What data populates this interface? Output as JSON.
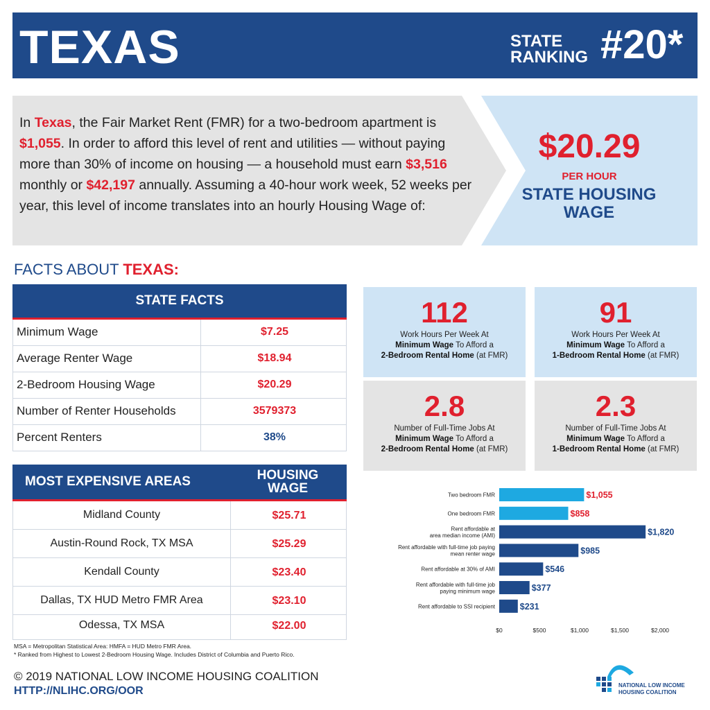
{
  "header": {
    "state": "TEXAS",
    "ranking_label_1": "STATE",
    "ranking_label_2": "RANKING",
    "ranking_value": "#20*"
  },
  "intro": {
    "p1": "In ",
    "state": "Texas",
    "p2": ", the Fair Market Rent (FMR) for a two-bedroom apartment is ",
    "fmr": "$1,055",
    "p3": ". In order to afford this level of rent and utilities — without paying more than 30% of income on housing — a household must earn ",
    "monthly": "$3,516",
    "p4": " monthly or ",
    "annual": "$42,197",
    "p5": " annually. Assuming a 40-hour work week, 52 weeks per year, this level of income translates into an hourly Housing Wage of:"
  },
  "housing_wage": {
    "value": "$20.29",
    "unit": "PER HOUR",
    "label_1": "STATE HOUSING",
    "label_2": "WAGE"
  },
  "facts_heading": {
    "prefix": "FACTS ABOUT ",
    "state": "TEXAS:"
  },
  "state_facts": {
    "title": "STATE FACTS",
    "rows": [
      {
        "label": "Minimum Wage",
        "value": "$7.25"
      },
      {
        "label": "Average Renter Wage",
        "value": "$18.94"
      },
      {
        "label": "2-Bedroom Housing Wage",
        "value": "$20.29"
      },
      {
        "label": "Number of Renter Households",
        "value": "3579373"
      },
      {
        "label": "Percent Renters",
        "value": "38%"
      }
    ]
  },
  "expensive_areas": {
    "title": "MOST EXPENSIVE AREAS",
    "wage_header_1": "HOUSING",
    "wage_header_2": "WAGE",
    "rows": [
      {
        "area": "Midland County",
        "wage": "$25.71"
      },
      {
        "area": "Austin-Round Rock, TX MSA",
        "wage": "$25.29"
      },
      {
        "area": "Kendall County",
        "wage": "$23.40"
      },
      {
        "area": "Dallas, TX HUD Metro FMR Area",
        "wage": "$23.10"
      },
      {
        "area": "Odessa, TX MSA",
        "wage": "$22.00"
      }
    ]
  },
  "stats": [
    {
      "value": "112",
      "line1": "Work Hours Per Week At",
      "bold1": "Minimum Wage",
      "line2": " To Afford a",
      "bold2": "2-Bedroom Rental Home",
      "line3": " (at FMR)"
    },
    {
      "value": "91",
      "line1": "Work Hours Per Week At",
      "bold1": "Minimum Wage",
      "line2": " To Afford a",
      "bold2": "1-Bedroom Rental Home",
      "line3": " (at FMR)"
    },
    {
      "value": "2.8",
      "line1": "Number of Full-Time Jobs At",
      "bold1": "Minimum Wage",
      "line2": " To Afford a",
      "bold2": "2-Bedroom Rental Home",
      "line3": " (at FMR)"
    },
    {
      "value": "2.3",
      "line1": "Number of Full-Time Jobs At",
      "bold1": "Minimum Wage",
      "line2": " To Afford a",
      "bold2": "1-Bedroom Rental Home",
      "line3": " (at FMR)"
    }
  ],
  "notes": {
    "line1": "MSA = Metropolitan Statistical Area: HMFA = HUD Metro FMR Area.",
    "line2": "* Ranked from Highest to Lowest 2-Bedroom Housing Wage. Includes District of Columbia and Puerto Rico."
  },
  "footer": {
    "copyright": "© 2019 NATIONAL LOW INCOME HOUSING COALITION",
    "url": "HTTP://NLIHC.ORG/OOR"
  },
  "logo": {
    "line1": "NATIONAL LOW INCOME",
    "line2": "HOUSING COALITION"
  },
  "colors": {
    "navy": "#1f4a8a",
    "red": "#e0202e",
    "light_blue": "#cfe4f5",
    "light_gray": "#e4e4e4",
    "bar_light": "#1ea9e1",
    "bar_dark": "#1f4a8a"
  },
  "chart_data": {
    "type": "bar",
    "orientation": "horizontal",
    "categories": [
      [
        "Two bedroom FMR"
      ],
      [
        "One bedroom FMR"
      ],
      [
        "Rent affordable at",
        "area median income (AMI)"
      ],
      [
        "Rent affordable with full-time job paying",
        "mean renter wage"
      ],
      [
        "Rent affordable at 30% of AMI"
      ],
      [
        "Rent affordable with full-time job",
        "paying minimum wage"
      ],
      [
        "Rent affordable to SSI recipient"
      ]
    ],
    "values": [
      1055,
      858,
      1820,
      985,
      546,
      377,
      231
    ],
    "value_labels": [
      "$1,055",
      "$858",
      "$1,820",
      "$985",
      "$546",
      "$377",
      "$231"
    ],
    "bar_colors": [
      "#1ea9e1",
      "#1ea9e1",
      "#1f4a8a",
      "#1f4a8a",
      "#1f4a8a",
      "#1f4a8a",
      "#1f4a8a"
    ],
    "label_colors": [
      "#e0202e",
      "#e0202e",
      "#1f4a8a",
      "#1f4a8a",
      "#1f4a8a",
      "#1f4a8a",
      "#1f4a8a"
    ],
    "xticks": [
      0,
      500,
      1000,
      1500,
      2000
    ],
    "xtick_labels": [
      "$0",
      "$500",
      "$1,000",
      "$1,500",
      "$2,000"
    ],
    "xlim": [
      0,
      2000
    ],
    "grid": false
  }
}
